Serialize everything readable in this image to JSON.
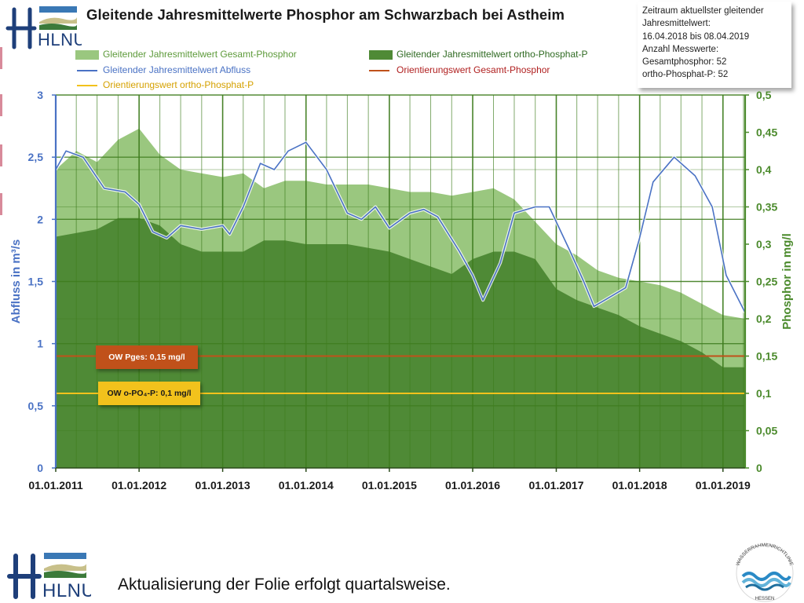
{
  "header": {
    "title": "Gleitende Jahresmittelwerte Phosphor am Schwarzbach bei Astheim",
    "logo_text": "HLNUG"
  },
  "infobox": {
    "line1": "Zeitraum aktuellster gleitender",
    "line2": "Jahresmittelwert:",
    "line3": "16.04.2018 bis 08.04.2019",
    "line4": "Anzahl Messwerte:",
    "line5": "Gesamtphosphor: 52",
    "line6": "ortho-Phosphat-P: 52"
  },
  "legend": {
    "gesamt": "Gleitender Jahresmittelwert Gesamt-Phosphor",
    "ortho": "Gleitender Jahresmittelwert ortho-Phosphat-P",
    "abfluss": "Gleitender Jahresmittelwert Abfluss",
    "ow_gesamt": "Orientierungswert Gesamt-Phosphor",
    "ow_ortho": "Orientierungswert ortho-Phosphat-P"
  },
  "ow_labels": {
    "pges": "OW Pges: 0,15 mg/l",
    "opo4": "OW o-PO₄-P: 0,1 mg/l"
  },
  "footer": {
    "text": "Aktualisierung der Folie erfolgt quartalsweise.",
    "wrrl_top": "WASSERRAHMENRICHTLINIE",
    "wrrl_bottom": "HESSEN"
  },
  "colors": {
    "gesamt_fill": "#9ac77f",
    "ortho_fill": "#4f8a36",
    "abfluss_line": "#4a72c4",
    "ow_gesamt": "#c0511a",
    "ow_ortho": "#f2c21c",
    "grid": "#3f7d1f",
    "left_axis": "#4a72c4",
    "right_axis": "#4b8a2c"
  },
  "chart_data": {
    "type": "area",
    "ylabel_left": "Abfluss in m³/s",
    "ylabel_right": "Phosphor in mg/l",
    "ylim_left": [
      0,
      3
    ],
    "ylim_right": [
      0,
      0.5
    ],
    "yticks_left": [
      "0",
      "0,5",
      "1",
      "1,5",
      "2",
      "2,5",
      "3"
    ],
    "yticks_right": [
      "0",
      "0,05",
      "0,1",
      "0,15",
      "0,2",
      "0,25",
      "0,3",
      "0,35",
      "0,4",
      "0,45",
      "0,5"
    ],
    "xticks": [
      "01.01.2011",
      "01.01.2012",
      "01.01.2013",
      "01.01.2014",
      "01.01.2015",
      "01.01.2016",
      "01.01.2017",
      "01.01.2018",
      "01.01.2019"
    ],
    "xlim": [
      "2011-01-01",
      "2019-04-08"
    ],
    "series": [
      {
        "name": "Gleitender Jahresmittelwert Gesamt-Phosphor",
        "axis": "right",
        "style": "area",
        "points": [
          [
            "2011-01-01",
            0.4
          ],
          [
            "2011-04-01",
            0.425
          ],
          [
            "2011-07-01",
            0.41
          ],
          [
            "2011-10-01",
            0.44
          ],
          [
            "2012-01-01",
            0.455
          ],
          [
            "2012-04-01",
            0.42
          ],
          [
            "2012-07-01",
            0.4
          ],
          [
            "2012-10-01",
            0.395
          ],
          [
            "2013-01-01",
            0.39
          ],
          [
            "2013-04-01",
            0.395
          ],
          [
            "2013-07-01",
            0.375
          ],
          [
            "2013-10-01",
            0.385
          ],
          [
            "2014-01-01",
            0.385
          ],
          [
            "2014-04-01",
            0.38
          ],
          [
            "2014-07-01",
            0.38
          ],
          [
            "2014-10-01",
            0.38
          ],
          [
            "2015-01-01",
            0.375
          ],
          [
            "2015-04-01",
            0.37
          ],
          [
            "2015-07-01",
            0.37
          ],
          [
            "2015-10-01",
            0.365
          ],
          [
            "2016-01-01",
            0.37
          ],
          [
            "2016-04-01",
            0.375
          ],
          [
            "2016-07-01",
            0.36
          ],
          [
            "2016-10-01",
            0.33
          ],
          [
            "2017-01-01",
            0.3
          ],
          [
            "2017-04-01",
            0.285
          ],
          [
            "2017-07-01",
            0.265
          ],
          [
            "2017-10-01",
            0.255
          ],
          [
            "2018-01-01",
            0.25
          ],
          [
            "2018-04-01",
            0.245
          ],
          [
            "2018-07-01",
            0.235
          ],
          [
            "2018-10-01",
            0.22
          ],
          [
            "2019-01-01",
            0.205
          ],
          [
            "2019-04-08",
            0.2
          ]
        ]
      },
      {
        "name": "Gleitender Jahresmittelwert ortho-Phosphat-P",
        "axis": "right",
        "style": "area",
        "points": [
          [
            "2011-01-01",
            0.31
          ],
          [
            "2011-04-01",
            0.315
          ],
          [
            "2011-07-01",
            0.32
          ],
          [
            "2011-10-01",
            0.335
          ],
          [
            "2012-01-01",
            0.335
          ],
          [
            "2012-04-01",
            0.325
          ],
          [
            "2012-07-01",
            0.3
          ],
          [
            "2012-10-01",
            0.29
          ],
          [
            "2013-01-01",
            0.29
          ],
          [
            "2013-04-01",
            0.29
          ],
          [
            "2013-07-01",
            0.305
          ],
          [
            "2013-10-01",
            0.305
          ],
          [
            "2014-01-01",
            0.3
          ],
          [
            "2014-04-01",
            0.3
          ],
          [
            "2014-07-01",
            0.3
          ],
          [
            "2014-10-01",
            0.295
          ],
          [
            "2015-01-01",
            0.29
          ],
          [
            "2015-04-01",
            0.28
          ],
          [
            "2015-07-01",
            0.27
          ],
          [
            "2015-10-01",
            0.26
          ],
          [
            "2016-01-01",
            0.28
          ],
          [
            "2016-04-01",
            0.29
          ],
          [
            "2016-07-01",
            0.29
          ],
          [
            "2016-10-01",
            0.28
          ],
          [
            "2017-01-01",
            0.24
          ],
          [
            "2017-04-01",
            0.225
          ],
          [
            "2017-07-01",
            0.215
          ],
          [
            "2017-10-01",
            0.205
          ],
          [
            "2018-01-01",
            0.19
          ],
          [
            "2018-04-01",
            0.18
          ],
          [
            "2018-07-01",
            0.17
          ],
          [
            "2018-10-01",
            0.155
          ],
          [
            "2019-01-01",
            0.135
          ],
          [
            "2019-04-08",
            0.135
          ]
        ]
      },
      {
        "name": "Gleitender Jahresmittelwert Abfluss",
        "axis": "left",
        "style": "line",
        "points": [
          [
            "2011-01-01",
            2.4
          ],
          [
            "2011-02-15",
            2.55
          ],
          [
            "2011-05-01",
            2.5
          ],
          [
            "2011-08-01",
            2.25
          ],
          [
            "2011-11-01",
            2.22
          ],
          [
            "2012-01-01",
            2.12
          ],
          [
            "2012-03-01",
            1.9
          ],
          [
            "2012-05-01",
            1.85
          ],
          [
            "2012-07-01",
            1.95
          ],
          [
            "2012-10-01",
            1.92
          ],
          [
            "2013-01-01",
            1.95
          ],
          [
            "2013-02-01",
            1.88
          ],
          [
            "2013-04-01",
            2.1
          ],
          [
            "2013-06-15",
            2.45
          ],
          [
            "2013-08-15",
            2.4
          ],
          [
            "2013-10-15",
            2.55
          ],
          [
            "2014-01-01",
            2.62
          ],
          [
            "2014-04-01",
            2.4
          ],
          [
            "2014-07-01",
            2.05
          ],
          [
            "2014-09-01",
            2.0
          ],
          [
            "2014-11-01",
            2.1
          ],
          [
            "2015-01-01",
            1.93
          ],
          [
            "2015-04-01",
            2.05
          ],
          [
            "2015-06-01",
            2.08
          ],
          [
            "2015-08-01",
            2.02
          ],
          [
            "2015-11-01",
            1.75
          ],
          [
            "2016-01-01",
            1.55
          ],
          [
            "2016-02-15",
            1.35
          ],
          [
            "2016-05-01",
            1.65
          ],
          [
            "2016-07-01",
            2.05
          ],
          [
            "2016-10-01",
            2.1
          ],
          [
            "2016-12-01",
            2.1
          ],
          [
            "2017-03-01",
            1.75
          ],
          [
            "2017-05-01",
            1.5
          ],
          [
            "2017-06-15",
            1.3
          ],
          [
            "2017-08-01",
            1.35
          ],
          [
            "2017-11-01",
            1.45
          ],
          [
            "2018-01-01",
            1.85
          ],
          [
            "2018-03-01",
            2.3
          ],
          [
            "2018-06-01",
            2.5
          ],
          [
            "2018-09-01",
            2.35
          ],
          [
            "2018-11-15",
            2.1
          ],
          [
            "2019-01-15",
            1.55
          ],
          [
            "2019-04-08",
            1.25
          ]
        ]
      },
      {
        "name": "Orientierungswert Gesamt-Phosphor",
        "axis": "right",
        "style": "hline",
        "value": 0.15
      },
      {
        "name": "Orientierungswert ortho-Phosphat-P",
        "axis": "right",
        "style": "hline",
        "value": 0.1
      }
    ]
  }
}
